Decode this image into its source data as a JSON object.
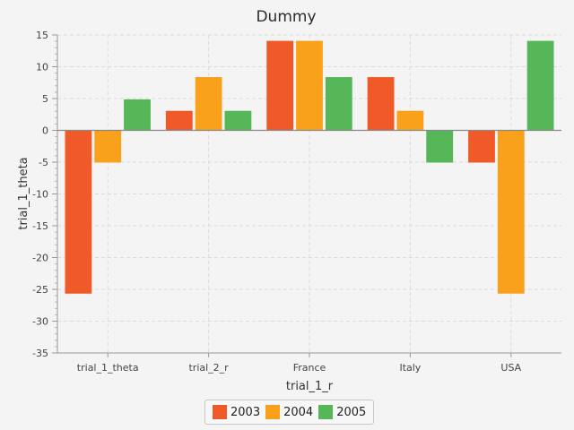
{
  "chart_data": {
    "type": "bar",
    "title": "Dummy",
    "xlabel": "trial_1_r",
    "ylabel": "trial_1_theta",
    "categories": [
      "trial_1_theta",
      "trial_2_r",
      "France",
      "Italy",
      "USA"
    ],
    "series": [
      {
        "name": "2003",
        "color": "#f05a28",
        "values": [
          -25.6,
          3.0,
          14.0,
          8.3,
          -5.0
        ]
      },
      {
        "name": "2004",
        "color": "#f9a11b",
        "values": [
          -5.0,
          8.3,
          14.0,
          3.0,
          -25.6
        ]
      },
      {
        "name": "2005",
        "color": "#55b757",
        "values": [
          4.8,
          3.0,
          8.3,
          -5.0,
          14.0
        ]
      }
    ],
    "ylim": [
      -35,
      15
    ],
    "yticks": [
      15,
      10,
      5,
      0,
      -5,
      -10,
      -15,
      -20,
      -25,
      -30,
      -35
    ],
    "grid": true,
    "legend_position": "bottom"
  }
}
